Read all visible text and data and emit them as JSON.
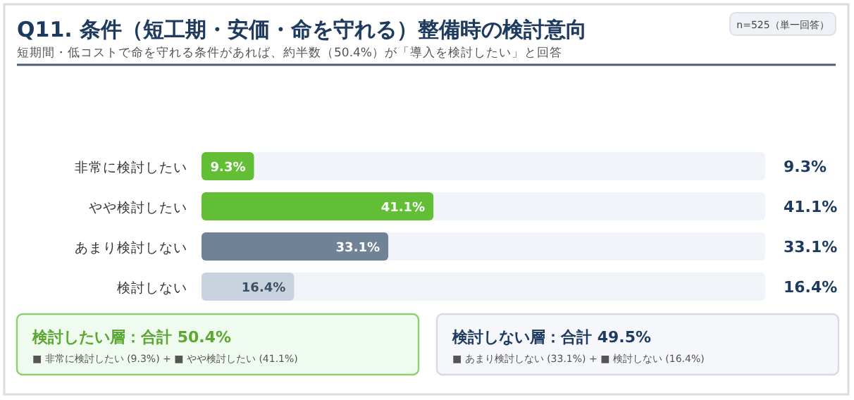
{
  "chart_data": {
    "type": "bar",
    "orientation": "horizontal",
    "title": "Q11. 条件（短工期・安価・命を守れる）整備時の検討意向",
    "subtitle": "短期間・低コストで命を守れる条件があれば、約半数（50.4%）が「導入を検討したい」と回答",
    "categories": [
      "非常に検討したい",
      "やや検討したい",
      "あまり検討しない",
      "検討しない"
    ],
    "values": [
      9.3,
      41.1,
      33.1,
      16.4
    ],
    "colors": [
      "#62bf35",
      "#62bf35",
      "#6f8296",
      "#c9d3df"
    ],
    "value_labels": [
      "9.3%",
      "41.1%",
      "33.1%",
      "16.4%"
    ],
    "annotations": [
      "n=525（単一回答）",
      "検討したい層：合計 50.4%",
      "■ 非常に検討したい (9.3%) + ■ やや検討したい (41.1%)",
      "検討しない層：合計 49.5%",
      "■ あまり検討しない (33.1%) + ■ 検討しない (16.4%)"
    ]
  }
}
